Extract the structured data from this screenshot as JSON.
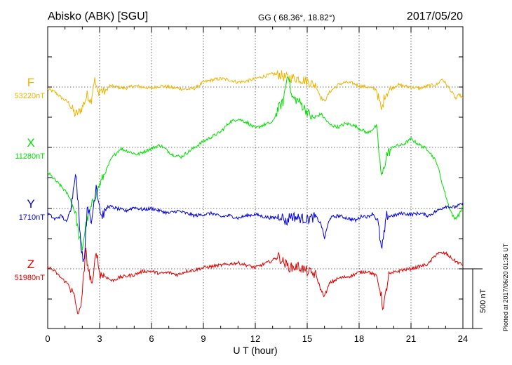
{
  "header": {
    "station": "Abisko (ABK)  [SGU]",
    "coords": "GG ( 68.36°,  18.82°)",
    "date": "2017/05/20"
  },
  "side_note": "Plotted at 2017/06/20 01:35 UT",
  "chart_data": {
    "type": "line",
    "xlabel": "U T (hour)",
    "xlim": [
      0,
      24
    ],
    "xticks": [
      "0",
      "3",
      "6",
      "9",
      "12",
      "15",
      "18",
      "21",
      "24"
    ],
    "grid": true,
    "scale_bar_label": "500 nT",
    "series": [
      {
        "name": "F",
        "baseline_label": "53220nT",
        "color": "#f0b400",
        "points": [
          [
            0,
            -20
          ],
          [
            0.4,
            -40
          ],
          [
            0.8,
            -90
          ],
          [
            1.2,
            -130
          ],
          [
            1.6,
            -230
          ],
          [
            1.8,
            -210
          ],
          [
            2.0,
            -170
          ],
          [
            2.3,
            -60
          ],
          [
            2.5,
            -120
          ],
          [
            2.7,
            70
          ],
          [
            2.9,
            -60
          ],
          [
            3.0,
            -20
          ],
          [
            3.3,
            -40
          ],
          [
            3.6,
            10
          ],
          [
            4,
            0
          ],
          [
            4.5,
            -10
          ],
          [
            5,
            10
          ],
          [
            5.5,
            0
          ],
          [
            6,
            -10
          ],
          [
            6.5,
            10
          ],
          [
            7,
            0
          ],
          [
            7.5,
            -10
          ],
          [
            8,
            -20
          ],
          [
            8.5,
            -10
          ],
          [
            9,
            40
          ],
          [
            9.5,
            60
          ],
          [
            10,
            70
          ],
          [
            10.5,
            60
          ],
          [
            11,
            40
          ],
          [
            11.5,
            50
          ],
          [
            12,
            70
          ],
          [
            12.5,
            90
          ],
          [
            13,
            110
          ],
          [
            13.5,
            100
          ],
          [
            13.7,
            80
          ],
          [
            14,
            80
          ],
          [
            14.5,
            70
          ],
          [
            15,
            50
          ],
          [
            15.5,
            10
          ],
          [
            15.8,
            -90
          ],
          [
            16.0,
            -120
          ],
          [
            16.3,
            -40
          ],
          [
            16.8,
            20
          ],
          [
            17.2,
            40
          ],
          [
            17.7,
            30
          ],
          [
            18,
            10
          ],
          [
            18.5,
            0
          ],
          [
            19,
            -20
          ],
          [
            19.3,
            -200
          ],
          [
            19.5,
            -60
          ],
          [
            19.8,
            -20
          ],
          [
            20.2,
            20
          ],
          [
            20.5,
            10
          ],
          [
            21,
            0
          ],
          [
            21.5,
            -10
          ],
          [
            22,
            10
          ],
          [
            22.5,
            20
          ],
          [
            22.8,
            70
          ],
          [
            23.0,
            30
          ],
          [
            23.3,
            -30
          ],
          [
            23.6,
            -100
          ],
          [
            23.8,
            -60
          ],
          [
            24,
            -100
          ]
        ]
      },
      {
        "name": "X",
        "baseline_label": "11280nT",
        "color": "#00e000",
        "points": [
          [
            0,
            -210
          ],
          [
            0.4,
            -270
          ],
          [
            0.8,
            -330
          ],
          [
            1.2,
            -400
          ],
          [
            1.6,
            -540
          ],
          [
            1.8,
            -740
          ],
          [
            2.0,
            -850
          ],
          [
            2.2,
            -650
          ],
          [
            2.5,
            -510
          ],
          [
            2.8,
            -380
          ],
          [
            3.2,
            -250
          ],
          [
            3.7,
            -90
          ],
          [
            4.2,
            -10
          ],
          [
            4.8,
            -40
          ],
          [
            5.2,
            -60
          ],
          [
            5.8,
            -20
          ],
          [
            6.5,
            20
          ],
          [
            7.2,
            -60
          ],
          [
            7.7,
            -80
          ],
          [
            8.3,
            -20
          ],
          [
            9,
            50
          ],
          [
            9.5,
            90
          ],
          [
            10,
            130
          ],
          [
            10.5,
            210
          ],
          [
            11,
            240
          ],
          [
            11.5,
            210
          ],
          [
            12,
            160
          ],
          [
            12.5,
            190
          ],
          [
            13,
            210
          ],
          [
            13.3,
            320
          ],
          [
            13.6,
            380
          ],
          [
            13.9,
            640
          ],
          [
            14.1,
            420
          ],
          [
            14.5,
            390
          ],
          [
            15,
            300
          ],
          [
            15.3,
            240
          ],
          [
            15.8,
            280
          ],
          [
            16.3,
            190
          ],
          [
            16.8,
            170
          ],
          [
            17.2,
            200
          ],
          [
            17.6,
            190
          ],
          [
            18,
            160
          ],
          [
            18.5,
            120
          ],
          [
            19.0,
            180
          ],
          [
            19.3,
            -260
          ],
          [
            19.6,
            -60
          ],
          [
            20,
            10
          ],
          [
            20.5,
            20
          ],
          [
            21,
            70
          ],
          [
            21.5,
            20
          ],
          [
            22,
            -20
          ],
          [
            22.5,
            -130
          ],
          [
            22.8,
            -300
          ],
          [
            23.2,
            -500
          ],
          [
            23.5,
            -600
          ],
          [
            23.8,
            -560
          ],
          [
            24,
            -490
          ]
        ]
      },
      {
        "name": "Y",
        "baseline_label": "1710nT",
        "color": "#0000e0",
        "points": [
          [
            0,
            -40
          ],
          [
            0.4,
            -90
          ],
          [
            0.8,
            -60
          ],
          [
            1.1,
            -120
          ],
          [
            1.4,
            60
          ],
          [
            1.6,
            320
          ],
          [
            1.8,
            -40
          ],
          [
            1.9,
            -280
          ],
          [
            2.1,
            -460
          ],
          [
            2.3,
            60
          ],
          [
            2.5,
            -150
          ],
          [
            2.8,
            200
          ],
          [
            3.1,
            -70
          ],
          [
            3.5,
            20
          ],
          [
            4,
            0
          ],
          [
            4.5,
            -20
          ],
          [
            5,
            10
          ],
          [
            5.5,
            -10
          ],
          [
            6,
            0
          ],
          [
            6.5,
            -20
          ],
          [
            7,
            -40
          ],
          [
            7.5,
            -20
          ],
          [
            8,
            -40
          ],
          [
            8.5,
            -60
          ],
          [
            9,
            -50
          ],
          [
            9.5,
            -40
          ],
          [
            10,
            -70
          ],
          [
            10.5,
            -60
          ],
          [
            11,
            -80
          ],
          [
            11.5,
            -60
          ],
          [
            12,
            -50
          ],
          [
            12.5,
            -70
          ],
          [
            13,
            -80
          ],
          [
            13.5,
            -60
          ],
          [
            13.8,
            -120
          ],
          [
            14,
            -60
          ],
          [
            14.5,
            -80
          ],
          [
            15,
            -90
          ],
          [
            15.5,
            -70
          ],
          [
            15.8,
            -130
          ],
          [
            16.0,
            -250
          ],
          [
            16.3,
            -80
          ],
          [
            16.8,
            -60
          ],
          [
            17.3,
            -80
          ],
          [
            17.8,
            -100
          ],
          [
            18.2,
            -60
          ],
          [
            18.5,
            -70
          ],
          [
            18.8,
            -40
          ],
          [
            19.1,
            -120
          ],
          [
            19.3,
            -360
          ],
          [
            19.6,
            -60
          ],
          [
            20,
            -60
          ],
          [
            20.5,
            -40
          ],
          [
            21,
            -50
          ],
          [
            21.5,
            -40
          ],
          [
            22,
            -60
          ],
          [
            22.5,
            -20
          ],
          [
            23,
            20
          ],
          [
            23.5,
            10
          ],
          [
            24,
            40
          ]
        ]
      },
      {
        "name": "Z",
        "baseline_label": "51980nT",
        "color": "#e00000",
        "points": [
          [
            0,
            20
          ],
          [
            0.4,
            -20
          ],
          [
            0.8,
            -80
          ],
          [
            1.2,
            -130
          ],
          [
            1.5,
            -220
          ],
          [
            1.8,
            -400
          ],
          [
            2.0,
            -200
          ],
          [
            2.2,
            140
          ],
          [
            2.4,
            -40
          ],
          [
            2.6,
            -140
          ],
          [
            2.8,
            170
          ],
          [
            3.0,
            -40
          ],
          [
            3.3,
            -60
          ],
          [
            3.7,
            -100
          ],
          [
            4.2,
            -70
          ],
          [
            5,
            -50
          ],
          [
            5.5,
            -20
          ],
          [
            6,
            -20
          ],
          [
            6.5,
            -40
          ],
          [
            7,
            -30
          ],
          [
            7.5,
            -50
          ],
          [
            8,
            -20
          ],
          [
            8.5,
            -10
          ],
          [
            9,
            10
          ],
          [
            9.5,
            20
          ],
          [
            10,
            30
          ],
          [
            10.5,
            40
          ],
          [
            11,
            50
          ],
          [
            11.5,
            30
          ],
          [
            12,
            10
          ],
          [
            12.5,
            40
          ],
          [
            13,
            70
          ],
          [
            13.3,
            110
          ],
          [
            13.6,
            60
          ],
          [
            14,
            10
          ],
          [
            14.5,
            20
          ],
          [
            15,
            -20
          ],
          [
            15.5,
            -50
          ],
          [
            15.8,
            -180
          ],
          [
            16.0,
            -230
          ],
          [
            16.3,
            -120
          ],
          [
            16.8,
            -80
          ],
          [
            17.5,
            -60
          ],
          [
            18,
            -30
          ],
          [
            18.5,
            -20
          ],
          [
            19.0,
            -60
          ],
          [
            19.2,
            -160
          ],
          [
            19.4,
            -340
          ],
          [
            19.7,
            -60
          ],
          [
            20,
            -30
          ],
          [
            20.5,
            -10
          ],
          [
            21,
            0
          ],
          [
            21.5,
            20
          ],
          [
            22,
            40
          ],
          [
            22.5,
            130
          ],
          [
            23,
            130
          ],
          [
            23.5,
            70
          ],
          [
            24,
            30
          ]
        ]
      }
    ]
  }
}
